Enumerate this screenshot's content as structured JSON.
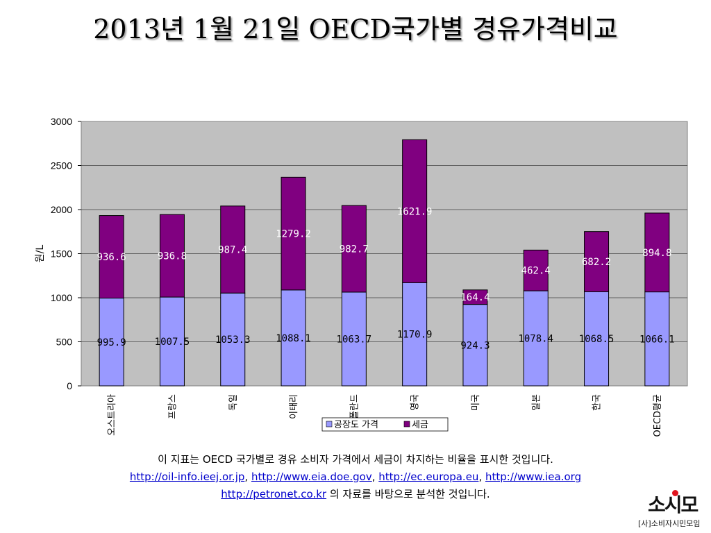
{
  "title": "2013년 1월 21일 OECD국가별 경유가격비교",
  "chart_data": {
    "type": "bar",
    "stacked": true,
    "ylabel": "원/L",
    "ylim": [
      0,
      3000
    ],
    "yticks": [
      0,
      500,
      1000,
      1500,
      2000,
      2500,
      3000
    ],
    "grid": true,
    "legend_position": "bottom",
    "categories": [
      "오스트리아",
      "프랑스",
      "독일",
      "이태리",
      "폴란드",
      "영국",
      "미국",
      "일본",
      "한국",
      "OECD평균"
    ],
    "series": [
      {
        "name": "공장도 가격",
        "color": "#9999ff",
        "values": [
          995.9,
          1007.5,
          1053.3,
          1088.1,
          1063.7,
          1170.9,
          924.3,
          1078.4,
          1068.5,
          1066.1
        ]
      },
      {
        "name": "세금",
        "color": "#800080",
        "values": [
          936.6,
          936.8,
          987.4,
          1279.2,
          982.7,
          1621.9,
          164.4,
          462.4,
          682.2,
          894.8
        ]
      }
    ],
    "value_labels": [
      [
        "995.9",
        "1007.5",
        "1053.3",
        "1088.1",
        "1063.7",
        "1170.9",
        "924.3",
        "1078.4",
        "1068.5",
        "1066.1"
      ],
      [
        "936.6",
        "936.8",
        "987.4",
        "1279.2",
        "982.7",
        "1621.9",
        "164.4",
        "462.4",
        "682.2",
        "894.8"
      ]
    ],
    "colors": {
      "plot_bg": "#c0c0c0",
      "border": "#808080"
    }
  },
  "footnote": {
    "line1": "이 지표는 OECD 국가별로 경유 소비자 가격에서 세금이 차지하는 비율을 표시한 것입니다.",
    "links": [
      "http://oil-info.ieej.or.jp",
      "http://www.eia.doe.gov",
      "http://ec.europa.eu",
      "http://www.iea.org"
    ],
    "sep": ", ",
    "link5": "http://petronet.co.kr",
    "line3_rest": " 의 자료를 바탕으로 분석한 것입니다."
  },
  "logo": {
    "mark": "소시모",
    "text": "[사]소비자시민모임"
  }
}
